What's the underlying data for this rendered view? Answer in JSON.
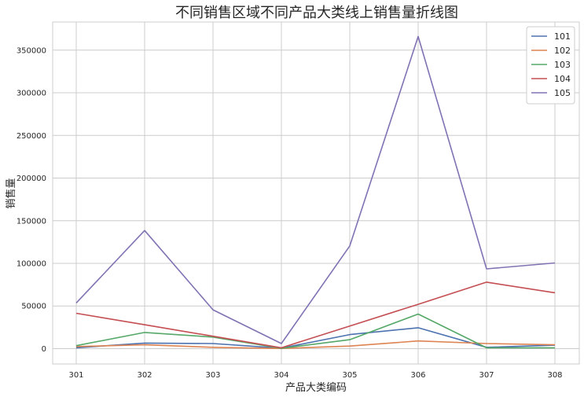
{
  "chart_data": {
    "type": "line",
    "title": "不同销售区域不同产品大类线上销售量折线图",
    "xlabel": "产品大类编码",
    "ylabel": "销售量",
    "categories": [
      "301",
      "302",
      "303",
      "304",
      "305",
      "306",
      "307",
      "308"
    ],
    "ylim": [
      -18000,
      383000
    ],
    "yticks": [
      0,
      50000,
      100000,
      150000,
      200000,
      250000,
      300000,
      350000
    ],
    "ytick_labels": [
      "0",
      "50000",
      "100000",
      "150000",
      "200000",
      "250000",
      "300000",
      "350000"
    ],
    "grid": true,
    "legend": "top-right",
    "series": [
      {
        "name": "101",
        "color": "#4c72b0",
        "values": [
          1000,
          6500,
          6000,
          500,
          16500,
          24500,
          1500,
          4000
        ]
      },
      {
        "name": "102",
        "color": "#dd8452",
        "values": [
          2500,
          4500,
          1500,
          200,
          3000,
          9000,
          6000,
          4500
        ]
      },
      {
        "name": "103",
        "color": "#55a868",
        "values": [
          3500,
          19000,
          13500,
          300,
          10500,
          40500,
          1000,
          1000
        ]
      },
      {
        "name": "104",
        "color": "#c44e52",
        "values": [
          41500,
          28000,
          14500,
          1000,
          26500,
          52000,
          78000,
          65500
        ]
      },
      {
        "name": "105",
        "color": "#8172b3",
        "values": [
          53500,
          138500,
          45500,
          6000,
          120500,
          366000,
          93500,
          100500
        ]
      }
    ]
  }
}
